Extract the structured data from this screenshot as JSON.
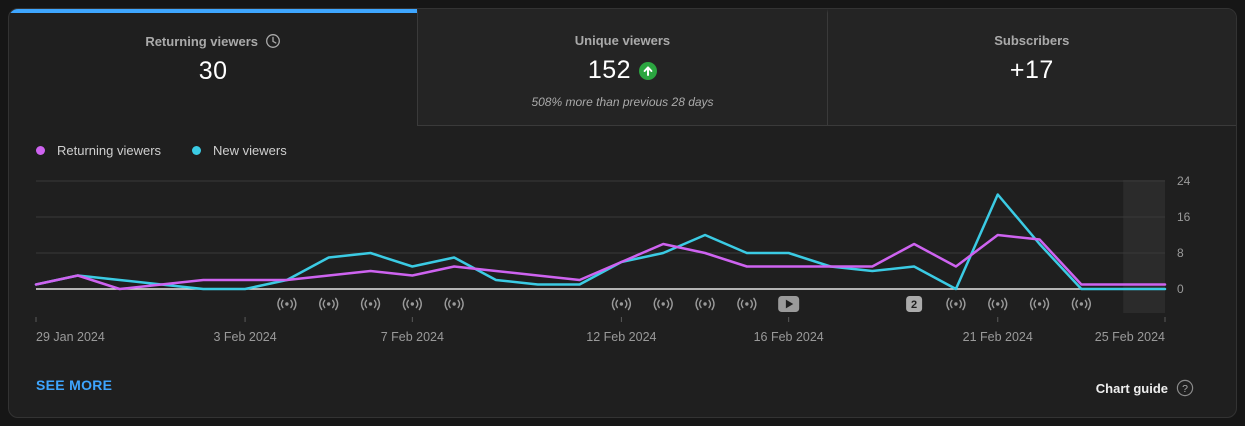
{
  "tabs": [
    {
      "label": "Returning viewers",
      "value": "30",
      "active": true,
      "icon": "clock-icon"
    },
    {
      "label": "Unique viewers",
      "value": "152",
      "trend": "up",
      "trend_color": "#2ba640",
      "subtitle": "508% more than previous 28 days"
    },
    {
      "label": "Subscribers",
      "value": "+17"
    }
  ],
  "legend": [
    {
      "label": "Returning viewers",
      "color": "#ce63f0"
    },
    {
      "label": "New viewers",
      "color": "#3bcbe4"
    }
  ],
  "chart_data": {
    "type": "line",
    "x": [
      "29 Jan 2024",
      "30 Jan 2024",
      "31 Jan 2024",
      "1 Feb 2024",
      "2 Feb 2024",
      "3 Feb 2024",
      "4 Feb 2024",
      "5 Feb 2024",
      "6 Feb 2024",
      "7 Feb 2024",
      "8 Feb 2024",
      "9 Feb 2024",
      "10 Feb 2024",
      "11 Feb 2024",
      "12 Feb 2024",
      "13 Feb 2024",
      "14 Feb 2024",
      "15 Feb 2024",
      "16 Feb 2024",
      "17 Feb 2024",
      "18 Feb 2024",
      "19 Feb 2024",
      "20 Feb 2024",
      "21 Feb 2024",
      "22 Feb 2024",
      "23 Feb 2024",
      "24 Feb 2024",
      "25 Feb 2024"
    ],
    "series": [
      {
        "name": "New viewers",
        "color": "#3bcbe4",
        "values": [
          1,
          3,
          2,
          1,
          0,
          0,
          2,
          7,
          8,
          5,
          7,
          2,
          1,
          1,
          6,
          8,
          12,
          8,
          8,
          5,
          4,
          5,
          0,
          21,
          10,
          0,
          0,
          0
        ]
      },
      {
        "name": "Returning viewers",
        "color": "#ce63f0",
        "values": [
          1,
          3,
          0,
          1,
          2,
          2,
          2,
          3,
          4,
          3,
          5,
          4,
          3,
          2,
          6,
          10,
          8,
          5,
          5,
          5,
          5,
          10,
          5,
          12,
          11,
          1,
          1,
          1
        ]
      }
    ],
    "ylim": [
      0,
      24
    ],
    "y_ticks": [
      0,
      8,
      16,
      24
    ],
    "x_tick_indices": [
      0,
      5,
      9,
      14,
      18,
      23,
      27
    ],
    "x_tick_labels": [
      "29 Jan 2024",
      "3 Feb 2024",
      "7 Feb 2024",
      "12 Feb 2024",
      "16 Feb 2024",
      "21 Feb 2024",
      "25 Feb 2024"
    ],
    "grid": "horizontal",
    "legend_position": "top-left",
    "highlight_last_interval": true,
    "markers": [
      {
        "type": "live-stream",
        "day_indices": [
          6,
          7,
          8,
          9,
          10,
          14,
          15,
          16,
          17,
          22,
          23,
          24,
          25
        ]
      },
      {
        "type": "video",
        "day_indices": [
          18
        ]
      },
      {
        "type": "count-badge",
        "label": "2",
        "day_indices": [
          21
        ]
      }
    ]
  },
  "footer": {
    "see_more": "SEE MORE",
    "chart_guide": "Chart guide"
  },
  "colors": {
    "accent_blue": "#3ea6ff",
    "card_bg": "#1f1f1f",
    "grid_line": "#3a3a3a",
    "zero_line": "#e6e6e6",
    "axis_text": "#9a9a9a",
    "marker_gray": "#9a9a9a",
    "highlight_band": "#2b2b2b",
    "trend_green": "#2ba640"
  }
}
